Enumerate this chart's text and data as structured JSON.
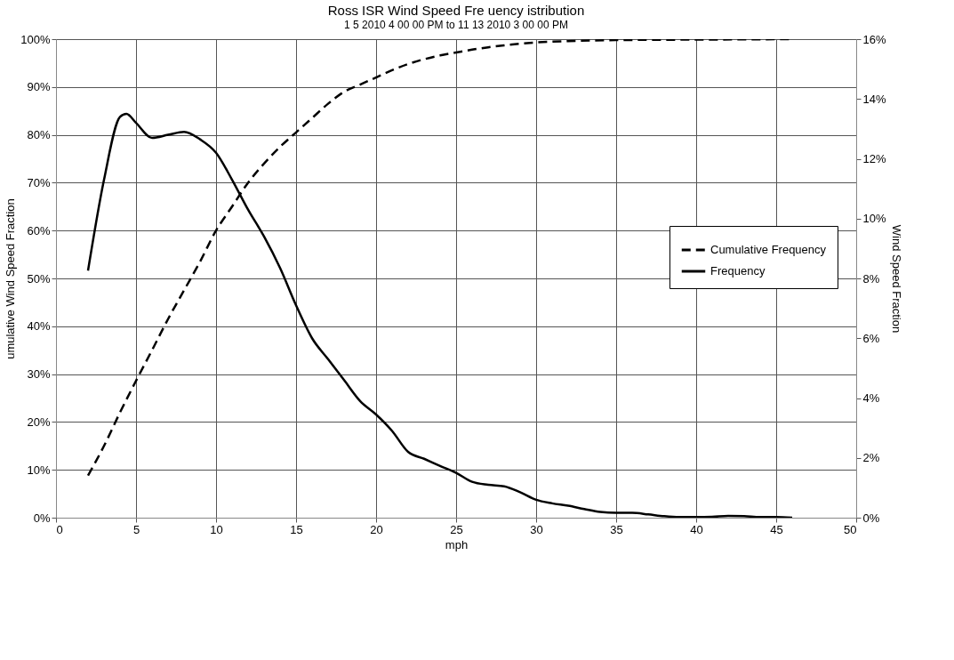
{
  "chart_data": {
    "type": "line",
    "title": "Ross ISR Wind Speed Fre uency  istribution",
    "subtitle": "1 5 2010 4 00 00 PM to 11 13 2010 3 00 00 PM",
    "xlabel": "mph",
    "ylabel": "umulative Wind Speed Fraction",
    "y2label": "Wind Speed Fraction",
    "xlim": [
      0,
      50
    ],
    "xticks": [
      0,
      5,
      10,
      15,
      20,
      25,
      30,
      35,
      40,
      45,
      50
    ],
    "ylim": [
      0,
      100
    ],
    "yticks": [
      {
        "value": 0,
        "label": "0%"
      },
      {
        "value": 10,
        "label": "10%"
      },
      {
        "value": 20,
        "label": "20%"
      },
      {
        "value": 30,
        "label": "30%"
      },
      {
        "value": 40,
        "label": "40%"
      },
      {
        "value": 50,
        "label": "50%"
      },
      {
        "value": 60,
        "label": "60%"
      },
      {
        "value": 70,
        "label": "70%"
      },
      {
        "value": 80,
        "label": "80%"
      },
      {
        "value": 90,
        "label": "90%"
      },
      {
        "value": 100,
        "label": "100%"
      }
    ],
    "y2lim": [
      0,
      16
    ],
    "y2ticks": [
      {
        "value": 0,
        "label": "0%"
      },
      {
        "value": 2,
        "label": "2%"
      },
      {
        "value": 4,
        "label": "4%"
      },
      {
        "value": 6,
        "label": "6%"
      },
      {
        "value": 8,
        "label": "8%"
      },
      {
        "value": 10,
        "label": "10%"
      },
      {
        "value": 12,
        "label": "12%"
      },
      {
        "value": 14,
        "label": "14%"
      },
      {
        "value": 16,
        "label": "16%"
      }
    ],
    "grid": true,
    "legend": "right",
    "marker": "none",
    "series": [
      {
        "name": "Cumulative Frequency",
        "color": "#000000",
        "line_style": "dashed",
        "x": [
          2,
          3,
          4,
          5,
          6,
          7,
          8,
          9,
          10,
          11,
          12,
          13,
          14,
          15,
          16,
          17,
          18,
          19,
          20,
          21,
          22,
          23,
          24,
          25,
          26,
          27,
          28,
          30,
          32,
          35,
          40,
          46
        ],
        "values": [
          8.8,
          15,
          22,
          28.6,
          35,
          41.5,
          47.5,
          53.5,
          60,
          65,
          70,
          74,
          77.5,
          80.5,
          83.5,
          86.5,
          89,
          90.5,
          92,
          93.5,
          94.8,
          95.8,
          96.6,
          97.2,
          97.8,
          98.3,
          98.7,
          99.3,
          99.6,
          99.8,
          99.9,
          100
        ]
      },
      {
        "name": "Frequency",
        "color": "#000000",
        "line_style": "solid",
        "axis": "y2",
        "x": [
          2,
          3,
          4,
          4.4,
          5,
          6,
          7,
          8,
          9,
          10,
          11,
          12,
          13,
          14,
          15,
          16,
          17,
          18,
          19,
          20,
          21,
          22,
          23,
          24,
          25,
          26,
          27,
          28,
          29,
          30,
          31,
          32,
          33,
          34,
          35,
          36,
          37,
          38,
          39,
          40,
          41,
          42,
          43,
          44,
          45,
          46
        ],
        "values": [
          8.26,
          11.3,
          13.4,
          13.5,
          13.2,
          12.7,
          12.8,
          12.9,
          12.65,
          12.2,
          11.3,
          10.3,
          9.4,
          8.35,
          7.1,
          6.0,
          5.3,
          4.6,
          3.9,
          3.45,
          2.9,
          2.2,
          1.97,
          1.73,
          1.5,
          1.2,
          1.1,
          1.05,
          0.85,
          0.6,
          0.48,
          0.4,
          0.29,
          0.19,
          0.16,
          0.16,
          0.11,
          0.05,
          0.02,
          0.02,
          0.03,
          0.06,
          0.05,
          0.02,
          0.02,
          0
        ]
      }
    ]
  }
}
